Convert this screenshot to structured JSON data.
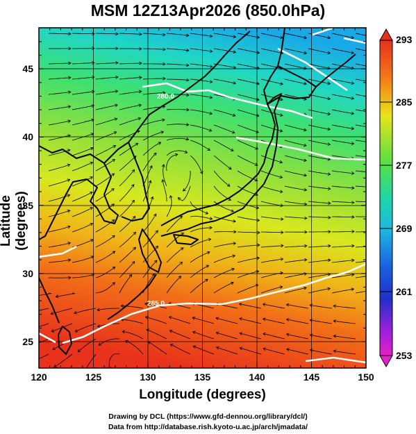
{
  "title": "MSM 12Z13Apr2026 (850.0hPa)",
  "xlabel": "Longitude (degrees)",
  "ylabel": "Latitude  (degrees)",
  "x_ticks": [
    "120",
    "125",
    "130",
    "135",
    "140",
    "145",
    "150"
  ],
  "y_ticks": [
    "25",
    "30",
    "35",
    "40",
    "45"
  ],
  "colorbar": {
    "ticks": [
      "293",
      "285",
      "277",
      "269",
      "261",
      "253"
    ],
    "min": 253,
    "max": 293
  },
  "contour_labels": [
    "280.0",
    "285.0"
  ],
  "credits": {
    "line1": "Drawing by DCL (https://www.gfd-dennou.org/library/dcl/)",
    "line2": "Data from http://database.rish.kyoto-u.ac.jp/arch/jmadata/"
  },
  "colors": {
    "warm": "#f4501e",
    "cool": "#1ec8dc",
    "land_outline": "#000000"
  }
}
